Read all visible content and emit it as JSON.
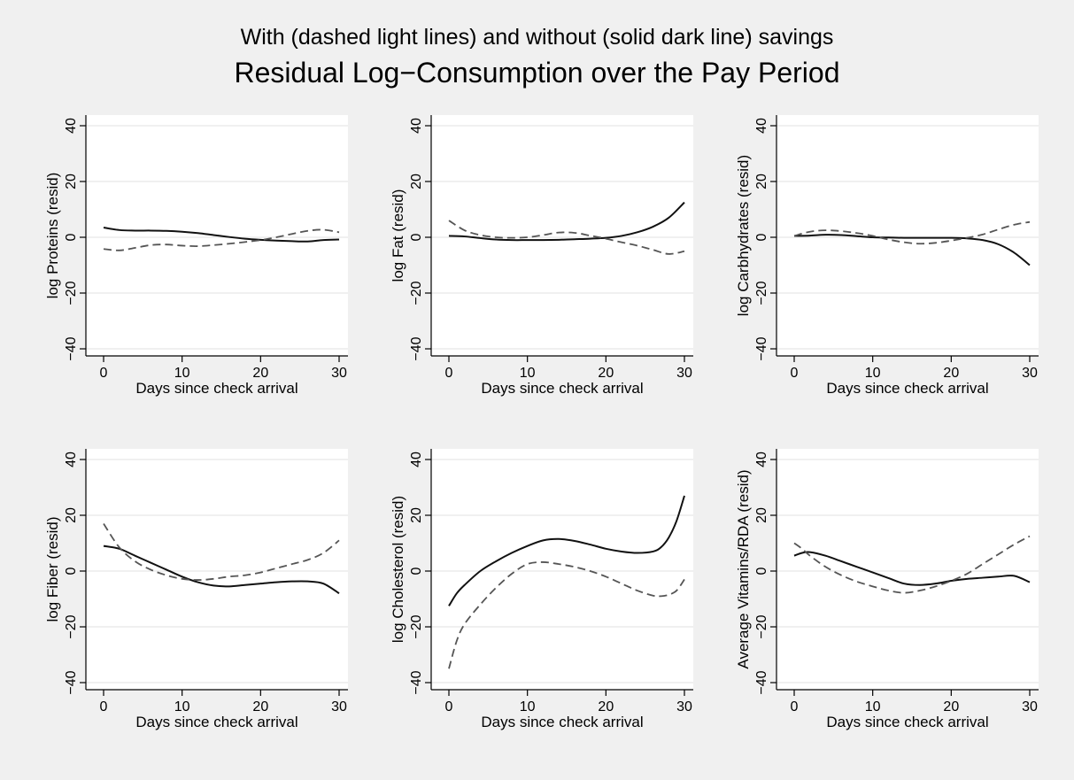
{
  "figure": {
    "subtitle": "With (dashed light lines) and without (solid dark line) savings",
    "title": "Residual Log−Consumption over the Pay Period"
  },
  "colors": {
    "background": "#f0f0f0",
    "plot_region": "#ffffff",
    "gridline": "#e6e6e6",
    "solid_line": "#111111",
    "dashed_line": "#555555"
  },
  "chart_data": [
    {
      "type": "line",
      "ylabel": "log Proteins (resid)",
      "xlabel": "Days since check arrival",
      "xlim": [
        0,
        30
      ],
      "ylim": [
        -40,
        40
      ],
      "xticks": [
        0,
        10,
        20,
        30
      ],
      "yticks": [
        -40,
        -20,
        0,
        20,
        40
      ],
      "grid": true,
      "series": [
        {
          "style": "solid",
          "x": [
            0,
            2,
            4,
            6,
            8,
            10,
            12,
            14,
            16,
            18,
            20,
            22,
            24,
            26,
            28,
            30
          ],
          "y": [
            3.5,
            2.6,
            2.4,
            2.4,
            2.3,
            2.0,
            1.5,
            0.8,
            0.1,
            -0.5,
            -0.9,
            -1.2,
            -1.4,
            -1.5,
            -1.0,
            -0.8
          ]
        },
        {
          "style": "dashed",
          "x": [
            0,
            2,
            4,
            6,
            8,
            10,
            12,
            14,
            16,
            18,
            20,
            22,
            24,
            26,
            28,
            30
          ],
          "y": [
            -4.2,
            -4.7,
            -3.8,
            -2.8,
            -2.6,
            -3.0,
            -3.2,
            -2.8,
            -2.3,
            -1.7,
            -1.0,
            0.0,
            1.2,
            2.3,
            2.7,
            1.8
          ]
        }
      ]
    },
    {
      "type": "line",
      "ylabel": "log Fat (resid)",
      "xlabel": "Days since check arrival",
      "xlim": [
        0,
        30
      ],
      "ylim": [
        -40,
        40
      ],
      "xticks": [
        0,
        10,
        20,
        30
      ],
      "yticks": [
        -40,
        -20,
        0,
        20,
        40
      ],
      "grid": true,
      "series": [
        {
          "style": "solid",
          "x": [
            0,
            2,
            4,
            6,
            8,
            10,
            12,
            14,
            16,
            18,
            20,
            22,
            24,
            26,
            28,
            30
          ],
          "y": [
            0.5,
            0.3,
            -0.3,
            -0.8,
            -1.0,
            -1.0,
            -1.0,
            -0.9,
            -0.7,
            -0.5,
            -0.2,
            0.5,
            1.8,
            3.8,
            7.0,
            12.5
          ]
        },
        {
          "style": "dashed",
          "x": [
            0,
            2,
            4,
            6,
            8,
            10,
            12,
            14,
            16,
            18,
            20,
            22,
            24,
            26,
            28,
            30
          ],
          "y": [
            6.0,
            2.5,
            0.8,
            0.0,
            -0.2,
            0.0,
            0.8,
            1.7,
            1.6,
            0.6,
            -0.5,
            -1.8,
            -3.0,
            -4.5,
            -6.0,
            -5.0
          ]
        }
      ]
    },
    {
      "type": "line",
      "ylabel": "log Carbhydrates (resid)",
      "xlabel": "Days since check arrival",
      "xlim": [
        0,
        30
      ],
      "ylim": [
        -40,
        40
      ],
      "xticks": [
        0,
        10,
        20,
        30
      ],
      "yticks": [
        -40,
        -20,
        0,
        20,
        40
      ],
      "grid": true,
      "series": [
        {
          "style": "solid",
          "x": [
            0,
            2,
            4,
            6,
            8,
            10,
            12,
            14,
            16,
            18,
            20,
            22,
            24,
            26,
            28,
            30
          ],
          "y": [
            0.5,
            0.6,
            0.9,
            0.8,
            0.4,
            0.0,
            -0.1,
            -0.2,
            -0.2,
            -0.2,
            -0.2,
            -0.4,
            -1.0,
            -2.5,
            -5.5,
            -10.0
          ]
        },
        {
          "style": "dashed",
          "x": [
            0,
            2,
            4,
            6,
            8,
            10,
            12,
            14,
            16,
            18,
            20,
            22,
            24,
            26,
            28,
            30
          ],
          "y": [
            0.5,
            2.0,
            2.5,
            2.2,
            1.5,
            0.5,
            -0.8,
            -1.8,
            -2.3,
            -2.0,
            -1.2,
            -0.2,
            1.0,
            2.8,
            4.5,
            5.5
          ]
        }
      ]
    },
    {
      "type": "line",
      "ylabel": "log Fiber (resid)",
      "xlabel": "Days since check arrival",
      "xlim": [
        0,
        30
      ],
      "ylim": [
        -40,
        40
      ],
      "xticks": [
        0,
        10,
        20,
        30
      ],
      "yticks": [
        -40,
        -20,
        0,
        20,
        40
      ],
      "grid": true,
      "series": [
        {
          "style": "solid",
          "x": [
            0,
            2,
            4,
            6,
            8,
            10,
            12,
            14,
            16,
            18,
            20,
            22,
            24,
            26,
            28,
            30
          ],
          "y": [
            9.0,
            8.0,
            5.5,
            3.0,
            0.5,
            -2.0,
            -4.0,
            -5.2,
            -5.5,
            -5.0,
            -4.5,
            -4.0,
            -3.7,
            -3.7,
            -4.5,
            -8.0
          ]
        },
        {
          "style": "dashed",
          "x": [
            0,
            2,
            4,
            6,
            8,
            10,
            12,
            14,
            16,
            18,
            20,
            22,
            24,
            26,
            28,
            30
          ],
          "y": [
            17.0,
            8.5,
            3.5,
            0.5,
            -1.5,
            -2.8,
            -3.2,
            -2.8,
            -2.0,
            -1.5,
            -0.5,
            1.0,
            2.5,
            4.0,
            6.5,
            11.0
          ]
        }
      ]
    },
    {
      "type": "line",
      "ylabel": "log Cholesterol (resid)",
      "xlabel": "Days since check arrival",
      "xlim": [
        0,
        30
      ],
      "ylim": [
        -40,
        40
      ],
      "xticks": [
        0,
        10,
        20,
        30
      ],
      "yticks": [
        -40,
        -20,
        0,
        20,
        40
      ],
      "grid": true,
      "series": [
        {
          "style": "solid",
          "x": [
            0,
            1,
            2,
            4,
            6,
            8,
            10,
            12,
            14,
            16,
            18,
            20,
            22,
            24,
            26,
            27,
            28,
            29,
            30
          ],
          "y": [
            -12.5,
            -8.0,
            -5.0,
            0.0,
            3.5,
            6.5,
            9.0,
            11.0,
            11.5,
            10.8,
            9.5,
            8.0,
            7.0,
            6.5,
            7.0,
            8.5,
            12.0,
            18.0,
            27.0
          ]
        },
        {
          "style": "dashed",
          "x": [
            0,
            1,
            2,
            4,
            6,
            8,
            10,
            12,
            14,
            16,
            18,
            20,
            22,
            24,
            26,
            27,
            28,
            29,
            30
          ],
          "y": [
            -35.0,
            -25.0,
            -19.0,
            -12.0,
            -6.0,
            -1.0,
            2.5,
            3.2,
            2.5,
            1.5,
            0.0,
            -2.0,
            -4.5,
            -7.0,
            -8.8,
            -9.0,
            -8.5,
            -7.0,
            -3.0
          ]
        }
      ]
    },
    {
      "type": "line",
      "ylabel": "Average Vitamins/RDA (resid)",
      "xlabel": "Days since check arrival",
      "xlim": [
        0,
        30
      ],
      "ylim": [
        -40,
        40
      ],
      "xticks": [
        0,
        10,
        20,
        30
      ],
      "yticks": [
        -40,
        -20,
        0,
        20,
        40
      ],
      "grid": true,
      "series": [
        {
          "style": "solid",
          "x": [
            0,
            1,
            2,
            4,
            6,
            8,
            10,
            12,
            14,
            16,
            18,
            20,
            22,
            24,
            26,
            28,
            30
          ],
          "y": [
            5.5,
            6.5,
            6.8,
            5.5,
            3.5,
            1.5,
            -0.5,
            -2.5,
            -4.5,
            -5.0,
            -4.5,
            -3.5,
            -2.8,
            -2.4,
            -2.0,
            -1.7,
            -4.0
          ]
        },
        {
          "style": "dashed",
          "x": [
            0,
            1,
            2,
            4,
            6,
            8,
            10,
            12,
            14,
            16,
            18,
            20,
            22,
            24,
            26,
            28,
            30
          ],
          "y": [
            10.0,
            8.0,
            5.5,
            1.5,
            -1.5,
            -3.8,
            -5.5,
            -7.0,
            -7.8,
            -7.0,
            -5.5,
            -3.5,
            -1.0,
            2.5,
            6.0,
            9.5,
            12.5
          ]
        }
      ]
    }
  ]
}
